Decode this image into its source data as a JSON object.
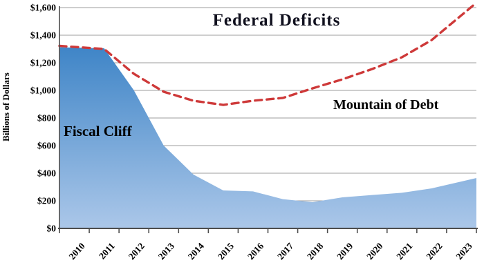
{
  "chart_data": {
    "type": "area",
    "title": "Federal Deficits",
    "ylabel": "Billions of Dollars",
    "xlabel": "",
    "ylim": [
      0,
      1600
    ],
    "y_tick_step": 200,
    "y_ticks": [
      "$0",
      "$200",
      "$400",
      "$600",
      "$800",
      "$1,000",
      "$1,200",
      "$1,400",
      "$1,600"
    ],
    "categories": [
      "2010",
      "2011",
      "2012",
      "2013",
      "2014",
      "2015",
      "2016",
      "2017",
      "2018",
      "2019",
      "2020",
      "2021",
      "2022",
      "2023"
    ],
    "series": [
      {
        "name": "Fiscal Cliff",
        "type": "area",
        "values": [
          1310,
          1305,
          1000,
          600,
          390,
          275,
          268,
          212,
          190,
          225,
          242,
          258,
          290,
          340
        ]
      },
      {
        "name": "Mountain of Debt",
        "type": "dashed-line",
        "values": [
          1315,
          1300,
          1120,
          990,
          925,
          895,
          925,
          945,
          1015,
          1080,
          1155,
          1240,
          1365,
          1545
        ]
      }
    ],
    "annotations": [
      {
        "text": "Fiscal Cliff"
      },
      {
        "text": "Mountain of Debt"
      }
    ],
    "legend": "none",
    "grid": true
  },
  "colors": {
    "area_top": "#3f85c7",
    "area_bottom": "#abc7e9",
    "line": "#ce3939",
    "grid": "#9c9c9c",
    "axis": "#4d4d4d",
    "text": "#000000",
    "title": "#10101e"
  }
}
